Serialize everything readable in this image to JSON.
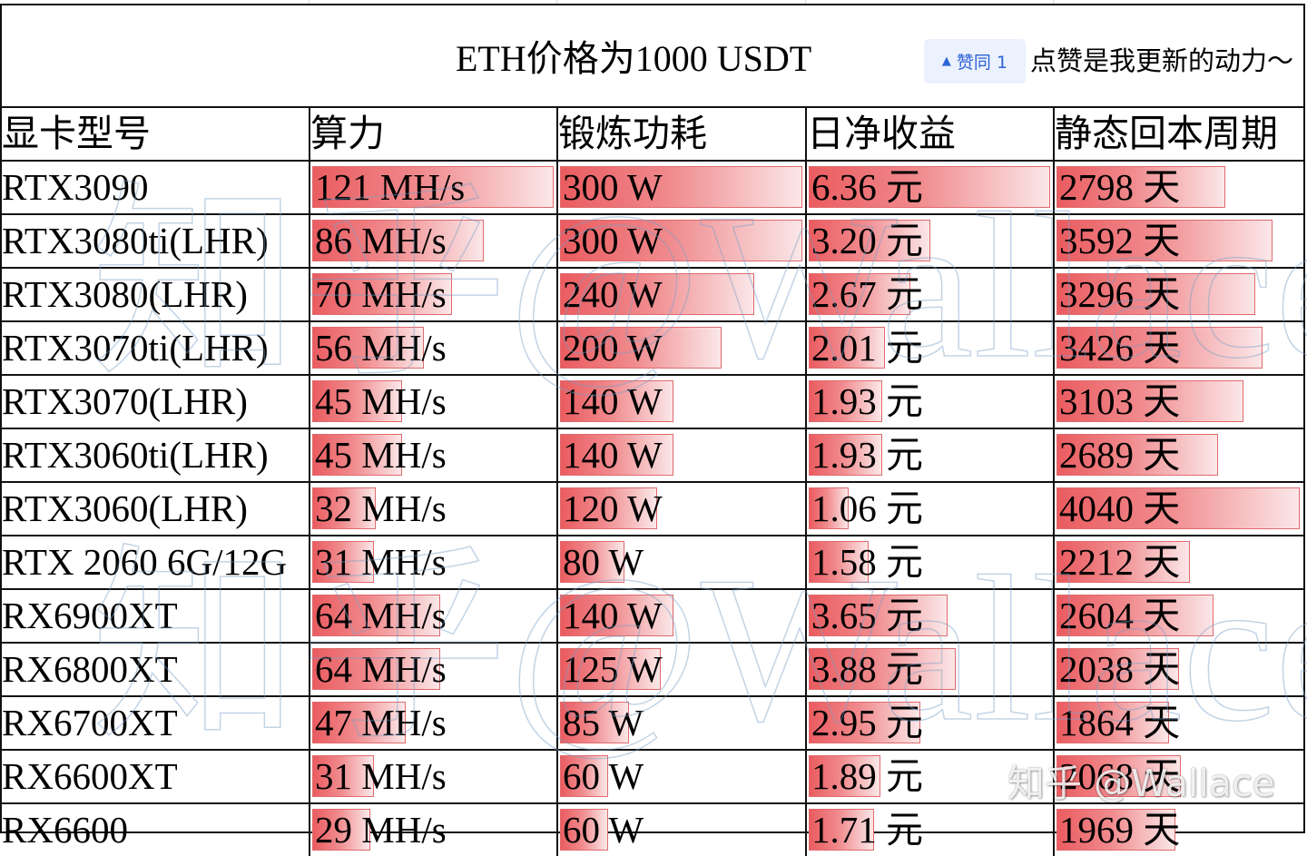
{
  "title": "ETH价格为1000 USDT",
  "upvote_badge": {
    "icon": "upvote-triangle-icon",
    "arrow": "▲",
    "label": "赞同 1",
    "color": "#2c63d6",
    "background": "#ebf1fd"
  },
  "call_to_action": "点赞是我更新的动力～",
  "table": {
    "headers": [
      "显卡型号",
      "算力",
      "锻炼功耗",
      "日净收益",
      "静态回本周期"
    ],
    "bar_color": "#ea5c60",
    "max": {
      "hashrate": 121,
      "power": 300,
      "profit": 6.36,
      "payback": 4040
    },
    "rows": [
      {
        "model": "RTX3090",
        "hashrate": "121 MH/s",
        "hashrate_value": 121,
        "power": "300 W",
        "power_value": 300,
        "profit": "6.36 元",
        "profit_value": 6.36,
        "payback": "2798 天",
        "payback_value": 2798
      },
      {
        "model": "RTX3080ti(LHR)",
        "hashrate": "86 MH/s",
        "hashrate_value": 86,
        "power": "300 W",
        "power_value": 300,
        "profit": "3.20 元",
        "profit_value": 3.2,
        "payback": "3592 天",
        "payback_value": 3592
      },
      {
        "model": "RTX3080(LHR)",
        "hashrate": "70 MH/s",
        "hashrate_value": 70,
        "power": "240 W",
        "power_value": 240,
        "profit": "2.67 元",
        "profit_value": 2.67,
        "payback": "3296 天",
        "payback_value": 3296
      },
      {
        "model": "RTX3070ti(LHR)",
        "hashrate": "56 MH/s",
        "hashrate_value": 56,
        "power": "200 W",
        "power_value": 200,
        "profit": "2.01 元",
        "profit_value": 2.01,
        "payback": "3426 天",
        "payback_value": 3426
      },
      {
        "model": "RTX3070(LHR)",
        "hashrate": "45 MH/s",
        "hashrate_value": 45,
        "power": "140 W",
        "power_value": 140,
        "profit": "1.93 元",
        "profit_value": 1.93,
        "payback": "3103 天",
        "payback_value": 3103
      },
      {
        "model": "RTX3060ti(LHR)",
        "hashrate": "45 MH/s",
        "hashrate_value": 45,
        "power": "140 W",
        "power_value": 140,
        "profit": "1.93 元",
        "profit_value": 1.93,
        "payback": "2689 天",
        "payback_value": 2689
      },
      {
        "model": "RTX3060(LHR)",
        "hashrate": "32 MH/s",
        "hashrate_value": 32,
        "power": "120 W",
        "power_value": 120,
        "profit": "1.06 元",
        "profit_value": 1.06,
        "payback": "4040 天",
        "payback_value": 4040
      },
      {
        "model": "RTX 2060 6G/12G",
        "hashrate": "31 MH/s",
        "hashrate_value": 31,
        "power": "80 W",
        "power_value": 80,
        "profit": "1.58 元",
        "profit_value": 1.58,
        "payback": "2212 天",
        "payback_value": 2212
      },
      {
        "model": "RX6900XT",
        "hashrate": "64 MH/s",
        "hashrate_value": 64,
        "power": "140 W",
        "power_value": 140,
        "profit": "3.65 元",
        "profit_value": 3.65,
        "payback": "2604 天",
        "payback_value": 2604
      },
      {
        "model": "RX6800XT",
        "hashrate": "64 MH/s",
        "hashrate_value": 64,
        "power": "125 W",
        "power_value": 125,
        "profit": "3.88 元",
        "profit_value": 3.88,
        "payback": "2038 天",
        "payback_value": 2038
      },
      {
        "model": "RX6700XT",
        "hashrate": "47 MH/s",
        "hashrate_value": 47,
        "power": "85 W",
        "power_value": 85,
        "profit": "2.95 元",
        "profit_value": 2.95,
        "payback": "1864 天",
        "payback_value": 1864
      },
      {
        "model": "RX6600XT",
        "hashrate": "31 MH/s",
        "hashrate_value": 31,
        "power": "60 W",
        "power_value": 60,
        "profit": "1.89 元",
        "profit_value": 1.89,
        "payback": "2068 天",
        "payback_value": 2068
      },
      {
        "model": "RX6600",
        "hashrate": "29 MH/s",
        "hashrate_value": 29,
        "power": "60 W",
        "power_value": 60,
        "profit": "1.71 元",
        "profit_value": 1.71,
        "payback": "1969 天",
        "payback_value": 1969
      }
    ]
  },
  "watermark": {
    "large_text": "知乎@Wallace",
    "signature": "知乎 @Wallace"
  }
}
